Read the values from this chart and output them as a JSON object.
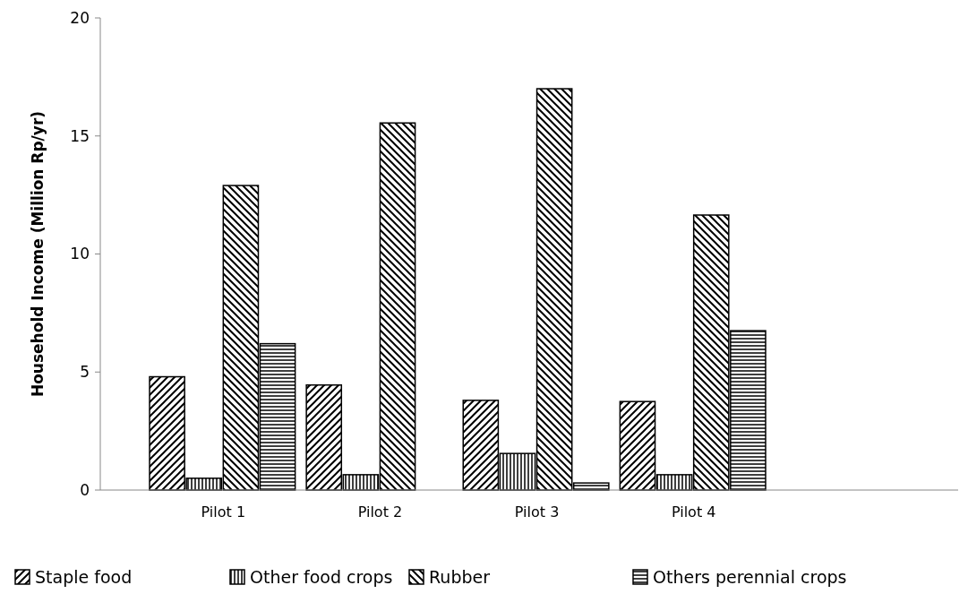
{
  "chart_data": {
    "type": "bar",
    "ylabel": "Household Income (Million Rp/yr)",
    "categories": [
      "Pilot 1",
      "Pilot 2",
      "Pilot 3",
      "Pilot 4"
    ],
    "ylim": [
      0,
      20
    ],
    "yticks": [
      0,
      5,
      10,
      15,
      20
    ],
    "legend": "bottom",
    "grid": false,
    "series": [
      {
        "name": "Staple food",
        "color": "#000000",
        "values": [
          4.8,
          4.45,
          3.8,
          3.75
        ]
      },
      {
        "name": "Other food crops",
        "color": "#000000",
        "values": [
          0.5,
          0.65,
          1.55,
          0.65
        ]
      },
      {
        "name": "Rubber",
        "color": "#000000",
        "values": [
          12.9,
          15.55,
          17.0,
          11.65
        ]
      },
      {
        "name": "Others perennial crops",
        "color": "#000000",
        "values": [
          6.2,
          null,
          0.3,
          6.75
        ]
      }
    ]
  }
}
